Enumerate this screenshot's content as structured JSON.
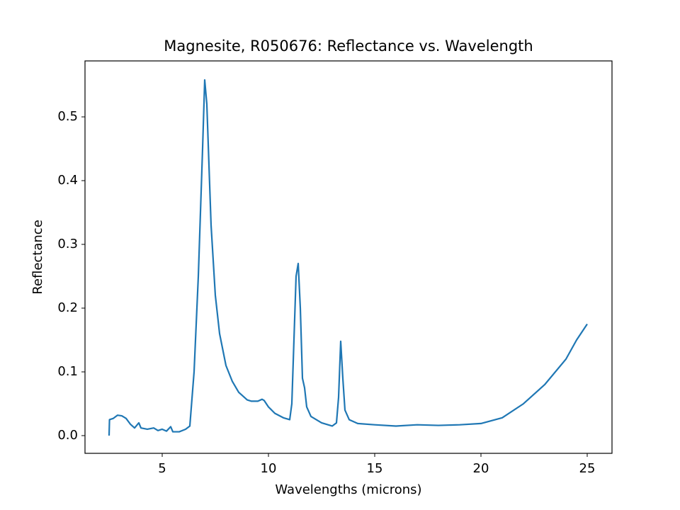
{
  "chart_data": {
    "type": "line",
    "title": "Magnesite, R050676: Reflectance vs. Wavelength",
    "xlabel": "Wavelengths (microns)",
    "ylabel": "Reflectance",
    "color": "#1f77b4",
    "x": [
      2.5,
      2.52,
      2.7,
      2.9,
      3.1,
      3.3,
      3.5,
      3.7,
      3.9,
      4.0,
      4.3,
      4.6,
      4.8,
      5.0,
      5.2,
      5.4,
      5.5,
      5.8,
      6.1,
      6.3,
      6.5,
      6.7,
      6.9,
      7.0,
      7.1,
      7.3,
      7.5,
      7.7,
      8.0,
      8.3,
      8.6,
      9.0,
      9.2,
      9.5,
      9.7,
      9.8,
      10.0,
      10.3,
      10.7,
      11.0,
      11.1,
      11.2,
      11.3,
      11.4,
      11.5,
      11.6,
      11.7,
      11.8,
      12.0,
      12.5,
      13.0,
      13.2,
      13.3,
      13.4,
      13.5,
      13.6,
      13.8,
      14.2,
      15,
      16,
      17,
      18,
      19,
      20,
      21,
      22,
      23,
      24,
      24.5,
      24.8,
      25
    ],
    "values": [
      0.0,
      0.025,
      0.027,
      0.032,
      0.031,
      0.027,
      0.018,
      0.012,
      0.02,
      0.012,
      0.01,
      0.012,
      0.008,
      0.01,
      0.007,
      0.014,
      0.006,
      0.006,
      0.01,
      0.015,
      0.1,
      0.25,
      0.45,
      0.558,
      0.52,
      0.33,
      0.22,
      0.16,
      0.11,
      0.085,
      0.068,
      0.056,
      0.054,
      0.054,
      0.057,
      0.055,
      0.045,
      0.035,
      0.028,
      0.025,
      0.05,
      0.15,
      0.25,
      0.27,
      0.2,
      0.09,
      0.075,
      0.045,
      0.03,
      0.02,
      0.015,
      0.02,
      0.06,
      0.148,
      0.09,
      0.04,
      0.025,
      0.019,
      0.017,
      0.015,
      0.017,
      0.016,
      0.017,
      0.019,
      0.028,
      0.05,
      0.08,
      0.12,
      0.15,
      0.165,
      0.175
    ],
    "xlim": [
      1.367,
      26.167
    ],
    "ylim": [
      -0.0278,
      0.5878
    ],
    "xticks": [
      5,
      10,
      15,
      20,
      25
    ],
    "yticks": [
      {
        "value": 0.0,
        "label": "0.0"
      },
      0.1,
      0.2,
      0.3,
      0.4,
      0.5
    ]
  }
}
